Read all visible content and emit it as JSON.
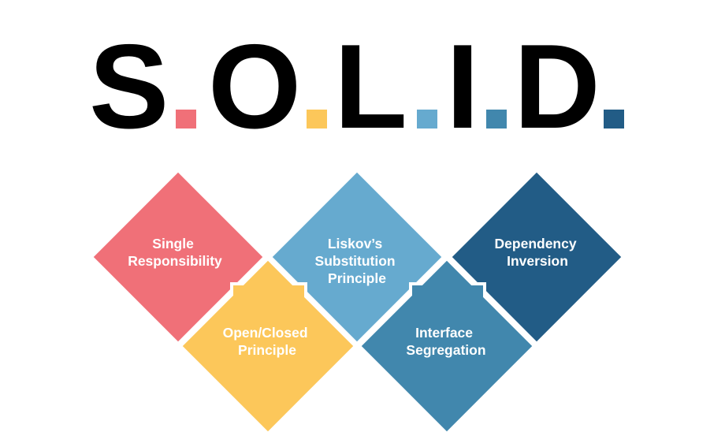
{
  "title": {
    "letters": [
      "S",
      "O",
      "L",
      "I",
      "D"
    ]
  },
  "colors": {
    "s": "#f07078",
    "o": "#fcc75a",
    "l": "#66aacf",
    "i": "#4187ad",
    "d": "#225c86",
    "text": "#000000",
    "label": "#ffffff"
  },
  "principles": [
    {
      "id": "s",
      "lines": [
        "Single",
        "Responsibility"
      ]
    },
    {
      "id": "o",
      "lines": [
        "Open/Closed",
        "Principle"
      ]
    },
    {
      "id": "l",
      "lines": [
        "Liskov’s",
        "Substitution",
        "Principle"
      ]
    },
    {
      "id": "i",
      "lines": [
        "Interface",
        "Segregation"
      ]
    },
    {
      "id": "d",
      "lines": [
        "Dependency",
        "Inversion"
      ]
    }
  ]
}
